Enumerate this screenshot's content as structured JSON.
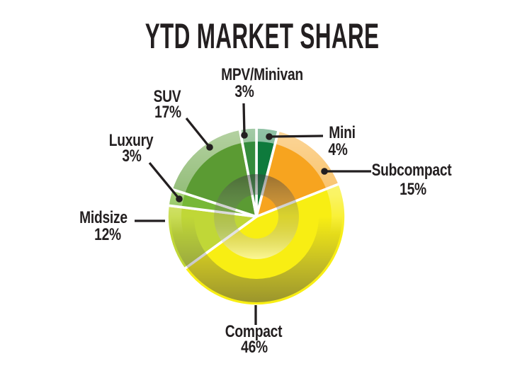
{
  "chart_data": {
    "type": "pie",
    "title": "YTD MARKET SHARE",
    "unit": "%",
    "start_angle_deg": 0,
    "direction": "clockwise",
    "total": 100,
    "legend": "none",
    "label_style": "callout-lines-with-dots",
    "slices": [
      {
        "label": "Mini",
        "value": 4,
        "pct_label": "4%",
        "color": "#0E7A3C"
      },
      {
        "label": "Subcompact",
        "value": 15,
        "pct_label": "15%",
        "color": "#F7A41F"
      },
      {
        "label": "Compact",
        "value": 46,
        "pct_label": "46%",
        "color": "#F8EE13"
      },
      {
        "label": "Midsize",
        "value": 12,
        "pct_label": "12%",
        "color": "#C0D737"
      },
      {
        "label": "Luxury",
        "value": 3,
        "pct_label": "3%",
        "color": "#77B837"
      },
      {
        "label": "SUV",
        "value": 17,
        "pct_label": "17%",
        "color": "#5B9B33"
      },
      {
        "label": "MPV/Minivan",
        "value": 3,
        "pct_label": "3%",
        "color": "#348B3C"
      }
    ],
    "style": {
      "background": "#FFFFFF",
      "slice_gap_color": "#FFFFFF",
      "callout_line_color": "#231F20",
      "text_color": "#231F20",
      "gloss": true
    }
  }
}
